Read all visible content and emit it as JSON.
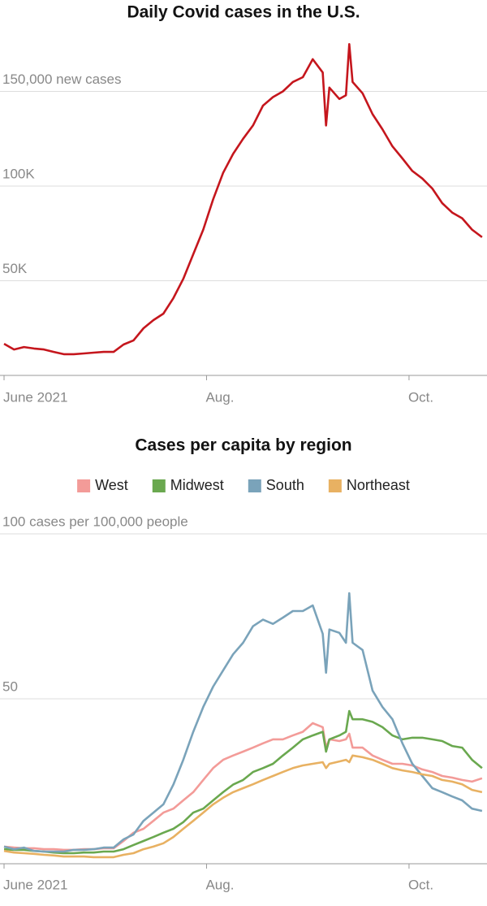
{
  "chart_data": [
    {
      "type": "line",
      "title": "Daily Covid cases in the U.S.",
      "color": "#c5161d",
      "x": [
        0,
        3,
        6,
        9,
        12,
        15,
        18,
        21,
        24,
        27,
        30,
        33,
        36,
        39,
        42,
        45,
        48,
        51,
        54,
        57,
        60,
        63,
        66,
        69,
        72,
        75,
        78,
        81,
        84,
        87,
        90,
        93,
        96,
        97,
        98,
        101,
        103,
        104,
        105,
        108,
        111,
        114,
        117,
        120,
        123,
        126,
        129,
        132,
        135,
        138,
        141,
        144
      ],
      "values": [
        16700,
        13700,
        15000,
        14200,
        13700,
        12400,
        11200,
        11200,
        11600,
        12000,
        12400,
        12400,
        16300,
        18500,
        24900,
        29200,
        32600,
        40800,
        51000,
        64000,
        77000,
        93000,
        107000,
        117000,
        125000,
        132000,
        142500,
        147000,
        150000,
        155000,
        157500,
        167000,
        160000,
        132000,
        152000,
        146000,
        148000,
        175000,
        155000,
        149000,
        138000,
        130000,
        121000,
        114600,
        108000,
        104000,
        98700,
        91000,
        86000,
        83000,
        77000,
        73000
      ],
      "xlim": [
        0,
        145
      ],
      "xticks": [
        {
          "value": 0,
          "label": "June 2021"
        },
        {
          "value": 61,
          "label": "Aug."
        },
        {
          "value": 122,
          "label": "Oct."
        }
      ],
      "ylim": [
        0,
        180000
      ],
      "yticks": [
        {
          "value": 50000,
          "label": "50K"
        },
        {
          "value": 100000,
          "label": "100K"
        },
        {
          "value": 150000,
          "label": "150,000 new cases"
        }
      ],
      "grid": true
    },
    {
      "type": "line",
      "title": "Cases per capita by region",
      "legend": "top",
      "x": [
        0,
        3,
        6,
        9,
        12,
        15,
        18,
        21,
        24,
        27,
        30,
        33,
        36,
        39,
        42,
        45,
        48,
        51,
        54,
        57,
        60,
        63,
        66,
        69,
        72,
        75,
        78,
        81,
        84,
        87,
        90,
        93,
        96,
        97,
        98,
        101,
        103,
        104,
        105,
        108,
        111,
        114,
        117,
        120,
        123,
        126,
        129,
        132,
        135,
        138,
        141,
        144
      ],
      "series": [
        {
          "name": "West",
          "color": "#f39b98",
          "values": [
            5.2,
            4.9,
            4.7,
            4.7,
            4.4,
            4.4,
            4.2,
            4.2,
            4.4,
            4.4,
            4.7,
            4.7,
            6.9,
            9.4,
            10.6,
            13,
            15.5,
            16.7,
            19.2,
            21.7,
            25.4,
            29,
            31.5,
            32.8,
            34,
            35.2,
            36.5,
            37.7,
            37.7,
            38.9,
            40,
            42.6,
            41.4,
            35.2,
            37.7,
            37.2,
            37.7,
            39.4,
            35.2,
            35.2,
            32.8,
            31.5,
            30.3,
            30.3,
            29.8,
            28.6,
            27.8,
            26.6,
            26.1,
            25.4,
            24.9,
            25.9
          ]
        },
        {
          "name": "Midwest",
          "color": "#6aa84f",
          "values": [
            4.4,
            4.2,
            4.2,
            3.9,
            3.7,
            3.4,
            3.2,
            3.2,
            3.4,
            3.4,
            3.7,
            3.7,
            4.4,
            5.7,
            6.9,
            8.1,
            9.4,
            10.6,
            12.6,
            15.5,
            16.7,
            19.2,
            21.7,
            24,
            25.4,
            27.8,
            29,
            30.3,
            32.8,
            35.2,
            37.7,
            38.9,
            40,
            34,
            37.7,
            38.9,
            40,
            46.3,
            43.8,
            43.8,
            43,
            41.4,
            38.9,
            37.7,
            38.2,
            38.2,
            37.7,
            37.2,
            35.7,
            35.2,
            31.5,
            29
          ]
        },
        {
          "name": "South",
          "color": "#7aa3ba",
          "values": [
            5.2,
            4.4,
            4.9,
            3.9,
            3.7,
            3.7,
            3.7,
            4.2,
            4.2,
            4.4,
            4.9,
            4.9,
            7.4,
            8.9,
            13,
            15.5,
            18,
            24,
            31.5,
            40,
            47.5,
            53.7,
            58.6,
            63.5,
            67,
            72,
            74,
            72.7,
            74.6,
            76.6,
            76.6,
            78.3,
            69.7,
            57.9,
            71,
            70,
            67,
            82,
            67,
            64.8,
            52.5,
            47.5,
            43.8,
            36.5,
            30.3,
            26.6,
            22.9,
            21.7,
            20.4,
            19.2,
            16.7,
            16
          ]
        },
        {
          "name": "Northeast",
          "color": "#e8b162",
          "values": [
            3.9,
            3.4,
            3.2,
            3.0,
            2.7,
            2.5,
            2.2,
            2.2,
            2.2,
            2.0,
            2.0,
            2.0,
            2.7,
            3.2,
            4.4,
            5.2,
            6.2,
            8.1,
            10.6,
            13,
            15.5,
            18,
            20,
            21.7,
            22.9,
            24.1,
            25.4,
            26.6,
            27.8,
            29,
            29.8,
            30.3,
            30.8,
            29,
            30.3,
            31,
            31.5,
            30.8,
            32.8,
            32.3,
            31.5,
            30.3,
            29,
            28.3,
            27.8,
            27.1,
            26.6,
            25.4,
            24.9,
            24.1,
            22.4,
            21.7
          ]
        }
      ],
      "xlim": [
        0,
        145
      ],
      "xticks": [
        {
          "value": 0,
          "label": "June 2021"
        },
        {
          "value": 61,
          "label": "Aug."
        },
        {
          "value": 122,
          "label": "Oct."
        }
      ],
      "ylim": [
        0,
        100
      ],
      "yticks": [
        {
          "value": 50,
          "label": "50"
        },
        {
          "value": 100,
          "label": "100 cases per 100,000 people"
        }
      ],
      "grid": true
    }
  ]
}
